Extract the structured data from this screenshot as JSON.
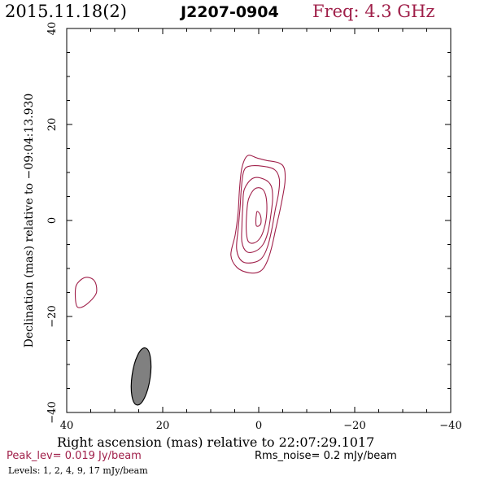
{
  "header": {
    "date": "2015.11.18(2)",
    "source": "J2207-0904",
    "freq": "Freq: 4.3 GHz"
  },
  "footer": {
    "peak": "Peak_lev=  0.019 Jy/beam",
    "rms": "Rms_noise=   0.2 mJy/beam",
    "levels": "Levels:    1,    2,    4,    9,   17 mJy/beam"
  },
  "colors": {
    "contour": "#a0204a",
    "beam_fill": "#808080",
    "axes": "#000000"
  },
  "chart_data": {
    "type": "contour",
    "xlabel": "Right ascension (mas) relative to 22:07:29.1017",
    "ylabel": "Declination (mas) relative to −09:04:13.930",
    "xlim": [
      40,
      -40
    ],
    "ylim": [
      -40,
      40
    ],
    "x_ticks": [
      40,
      20,
      0,
      -20,
      -40
    ],
    "x_tick_labels": [
      "40",
      "20",
      "0",
      "−20",
      "−40"
    ],
    "y_ticks": [
      -40,
      -20,
      0,
      20,
      40
    ],
    "y_tick_labels": [
      "−40",
      "−20",
      "0",
      "20",
      "40"
    ],
    "levels_mJy": [
      1,
      2,
      4,
      9,
      17
    ],
    "peak_Jy_per_beam": 0.019,
    "rms_mJy_per_beam": 0.2,
    "contours": [
      {
        "level": 1,
        "points": [
          [
            2.3,
            13.5
          ],
          [
            0.3,
            13.0
          ],
          [
            -1.7,
            12.5
          ],
          [
            -4.2,
            12.0
          ],
          [
            -5.3,
            10.9
          ],
          [
            -5.5,
            8.3
          ],
          [
            -5.0,
            5.0
          ],
          [
            -4.4,
            2.0
          ],
          [
            -3.5,
            -2.0
          ],
          [
            -2.6,
            -6.0
          ],
          [
            -1.6,
            -8.9
          ],
          [
            -0.3,
            -10.6
          ],
          [
            2.0,
            -10.9
          ],
          [
            4.5,
            -9.8
          ],
          [
            5.8,
            -7.2
          ],
          [
            4.9,
            -3.0
          ],
          [
            4.3,
            1.5
          ],
          [
            4.0,
            6.5
          ],
          [
            3.5,
            11.0
          ]
        ]
      },
      {
        "level": 2,
        "points": [
          [
            2.0,
            11.3
          ],
          [
            -0.8,
            11.3
          ],
          [
            -3.3,
            10.6
          ],
          [
            -4.3,
            8.6
          ],
          [
            -4.1,
            5.5
          ],
          [
            -3.4,
            2.0
          ],
          [
            -2.7,
            -2.0
          ],
          [
            -1.8,
            -5.6
          ],
          [
            -0.6,
            -7.9
          ],
          [
            1.3,
            -8.8
          ],
          [
            3.5,
            -8.5
          ],
          [
            4.6,
            -6.0
          ],
          [
            4.3,
            -2.0
          ],
          [
            3.9,
            2.5
          ],
          [
            3.6,
            7.0
          ],
          [
            3.1,
            10.3
          ]
        ]
      },
      {
        "level": 4,
        "points": [
          [
            1.2,
            8.8
          ],
          [
            -1.1,
            8.6
          ],
          [
            -2.6,
            7.2
          ],
          [
            -2.9,
            4.5
          ],
          [
            -2.5,
            1.0
          ],
          [
            -1.9,
            -2.5
          ],
          [
            -0.9,
            -5.0
          ],
          [
            0.7,
            -6.4
          ],
          [
            2.5,
            -6.5
          ],
          [
            3.5,
            -4.5
          ],
          [
            3.5,
            -1.0
          ],
          [
            3.3,
            3.0
          ],
          [
            3.0,
            6.5
          ]
        ]
      },
      {
        "level": 9,
        "points": [
          [
            0.8,
            6.6
          ],
          [
            -0.7,
            6.6
          ],
          [
            -1.5,
            5.0
          ],
          [
            -1.7,
            2.0
          ],
          [
            -1.3,
            -1.0
          ],
          [
            -0.4,
            -3.5
          ],
          [
            1.0,
            -4.7
          ],
          [
            2.2,
            -4.3
          ],
          [
            2.6,
            -2.0
          ],
          [
            2.5,
            1.5
          ],
          [
            2.1,
            4.5
          ]
        ]
      },
      {
        "level": 17,
        "points": [
          [
            0.3,
            1.9
          ],
          [
            -0.3,
            1.2
          ],
          [
            -0.5,
            -0.3
          ],
          [
            -0.1,
            -1.1
          ],
          [
            0.5,
            -1.1
          ],
          [
            0.6,
            0.0
          ],
          [
            0.5,
            1.2
          ]
        ]
      },
      {
        "level": 1,
        "points": [
          [
            36.5,
            -12.0
          ],
          [
            35.0,
            -12.0
          ],
          [
            34.0,
            -13.0
          ],
          [
            33.8,
            -15.0
          ],
          [
            34.8,
            -16.5
          ],
          [
            36.5,
            -17.9
          ],
          [
            37.8,
            -18.0
          ],
          [
            38.2,
            -16.0
          ],
          [
            38.0,
            -13.5
          ]
        ]
      }
    ],
    "beam": {
      "center": [
        24.5,
        -32.5
      ],
      "major_mas": 12.0,
      "minor_mas": 3.8,
      "pa_deg": -8
    }
  }
}
